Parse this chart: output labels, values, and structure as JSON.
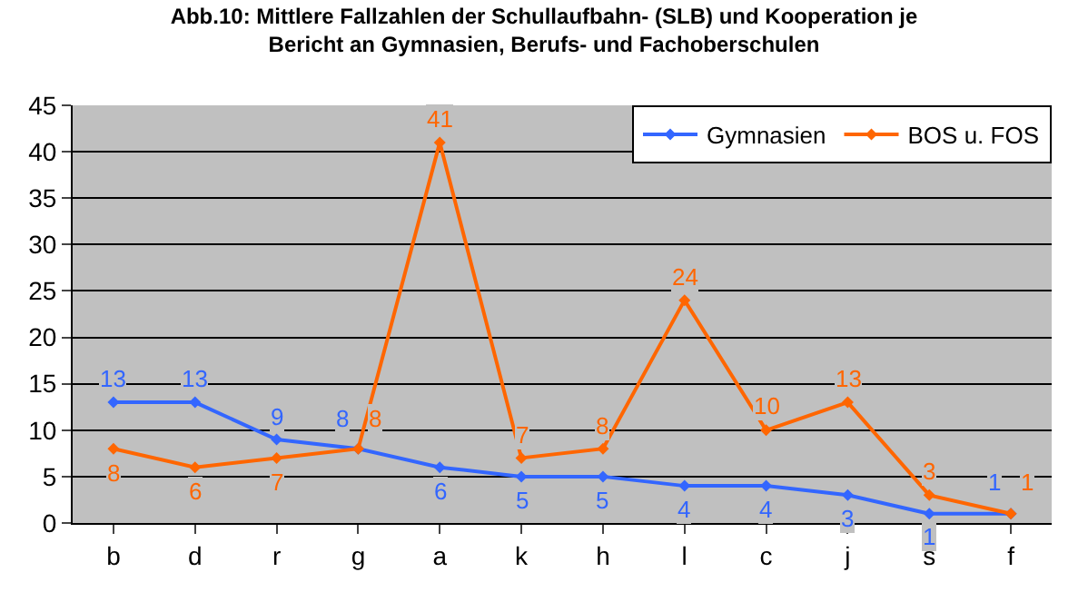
{
  "chart_data": {
    "type": "line",
    "title": "Abb.10: Mittlere Fallzahlen der Schullaufbahn- (SLB) und Kooperation je Bericht an Gymnasien, Berufs- und Fachoberschulen",
    "categories": [
      "b",
      "d",
      "r",
      "g",
      "a",
      "k",
      "h",
      "l",
      "c",
      "j",
      "s",
      "f"
    ],
    "series": [
      {
        "name": "Gymnasien",
        "color": "#3366ff",
        "values": [
          13,
          13,
          9,
          8,
          6,
          5,
          5,
          4,
          4,
          3,
          1,
          1
        ]
      },
      {
        "name": "BOS u. FOS",
        "color": "#ff6600",
        "values": [
          8,
          6,
          7,
          8,
          41,
          7,
          8,
          24,
          10,
          13,
          3,
          1
        ]
      }
    ],
    "ylim": [
      0,
      45
    ],
    "yticks": [
      0,
      5,
      10,
      15,
      20,
      25,
      30,
      35,
      40,
      45
    ],
    "grid": "y",
    "legend": "top right",
    "marker": "diamond",
    "line_style": "solid",
    "data_labels": true
  }
}
